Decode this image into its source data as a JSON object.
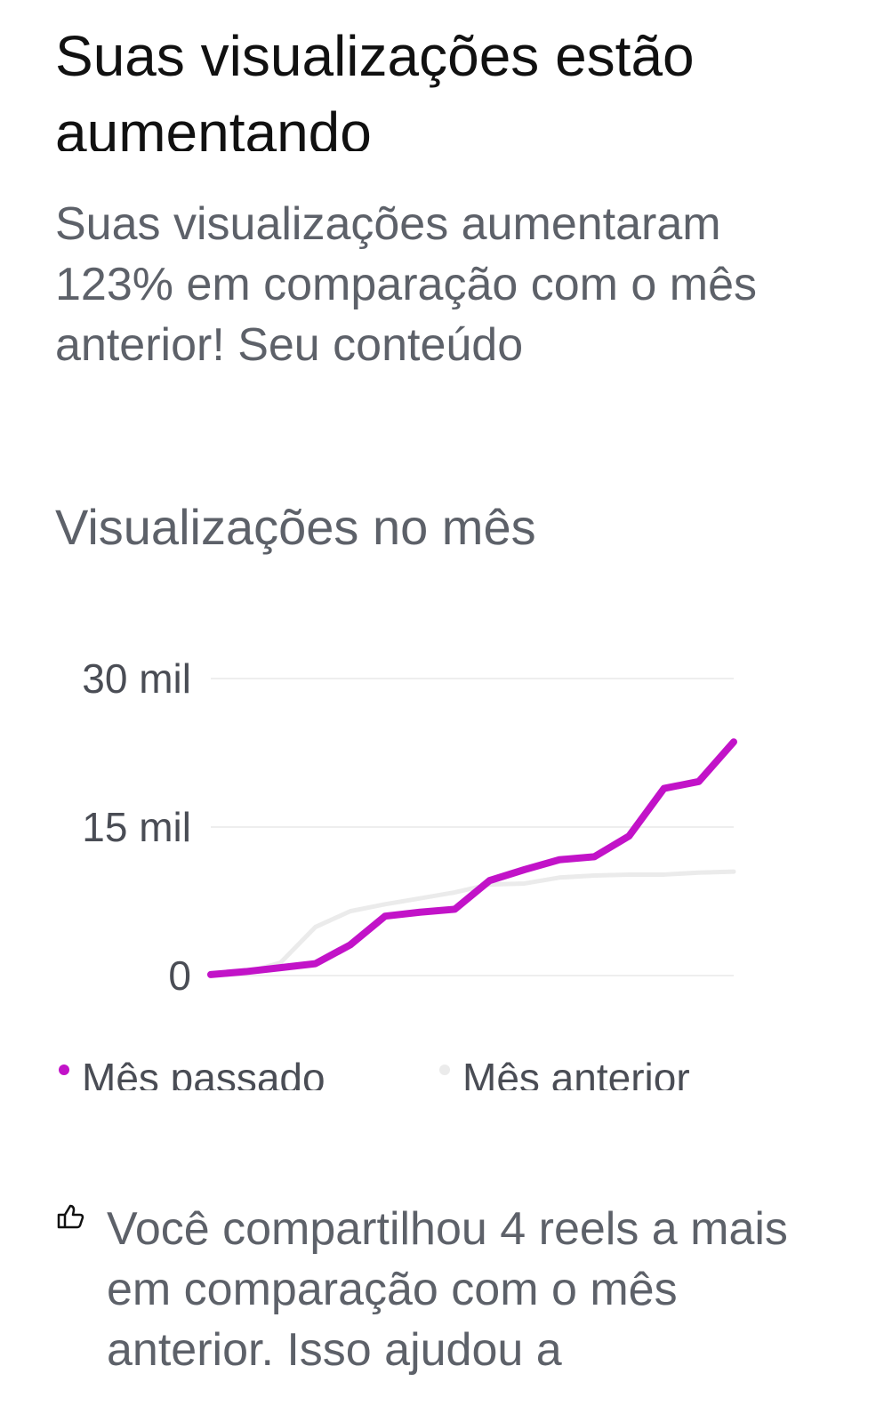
{
  "header": {
    "title": "Suas visualizações estão aumentando",
    "description": "Suas visualizações aumentaram 123% em comparação com o mês anterior! Seu conteúdo"
  },
  "chart_data": {
    "type": "line",
    "title": "Visualizações no mês",
    "categories": [
      null,
      null,
      null,
      null,
      null,
      null,
      null,
      null,
      null,
      null,
      null,
      null,
      null,
      null,
      null,
      null
    ],
    "series": [
      {
        "name": "Mês passado",
        "color": "#c213c8",
        "values": [
          100,
          400,
          800,
          1200,
          3100,
          6000,
          6400,
          6700,
          9600,
          10700,
          11700,
          12000,
          14100,
          18900,
          19600,
          23600
        ]
      },
      {
        "name": "Mês anterior",
        "color": "#ebebeb",
        "values": [
          0,
          300,
          1300,
          4900,
          6500,
          7200,
          7800,
          8400,
          9200,
          9300,
          9900,
          10100,
          10200,
          10200,
          10400,
          10500
        ]
      }
    ],
    "ylim": [
      0,
      30000
    ],
    "yticks": [
      0,
      {
        "value": 15000,
        "label": "15 mil"
      },
      {
        "value": 30000,
        "label": "30 mil"
      }
    ],
    "grid": true
  },
  "footer": {
    "text": "Você compartilhou 4 reels a mais em comparação com o mês anterior. Isso ajudou a"
  }
}
